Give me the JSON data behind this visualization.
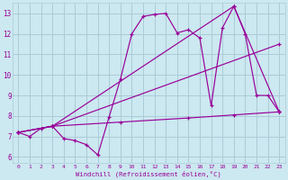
{
  "bg_color": "#cce8f0",
  "grid_color": "#aaccd8",
  "line_color": "#990099",
  "xlabel": "Windchill (Refroidissement éolien,°C)",
  "xlim": [
    -0.5,
    23.5
  ],
  "ylim": [
    5.7,
    13.5
  ],
  "yticks": [
    6,
    7,
    8,
    9,
    10,
    11,
    12,
    13
  ],
  "xticks": [
    0,
    1,
    2,
    3,
    4,
    5,
    6,
    7,
    8,
    9,
    10,
    11,
    12,
    13,
    14,
    15,
    16,
    17,
    18,
    19,
    20,
    21,
    22,
    23
  ],
  "series": [
    {
      "x": [
        0,
        1,
        2,
        3,
        4,
        5,
        6,
        7,
        8,
        9,
        10,
        11,
        12,
        13,
        14,
        15,
        16,
        17,
        18,
        19,
        20,
        21,
        22,
        23
      ],
      "y": [
        7.2,
        7.0,
        7.4,
        7.5,
        6.9,
        6.8,
        6.6,
        6.1,
        7.95,
        9.8,
        12.0,
        12.85,
        12.95,
        13.0,
        12.05,
        12.2,
        11.8,
        8.5,
        12.3,
        13.35,
        12.0,
        9.0,
        9.0,
        8.2
      ]
    },
    {
      "x": [
        0,
        3,
        9,
        15,
        19,
        23
      ],
      "y": [
        7.2,
        7.5,
        7.7,
        7.9,
        8.05,
        8.2
      ]
    },
    {
      "x": [
        0,
        3,
        19,
        23
      ],
      "y": [
        7.2,
        7.5,
        13.35,
        8.2
      ]
    },
    {
      "x": [
        0,
        3,
        23
      ],
      "y": [
        7.2,
        7.5,
        11.5
      ]
    }
  ]
}
